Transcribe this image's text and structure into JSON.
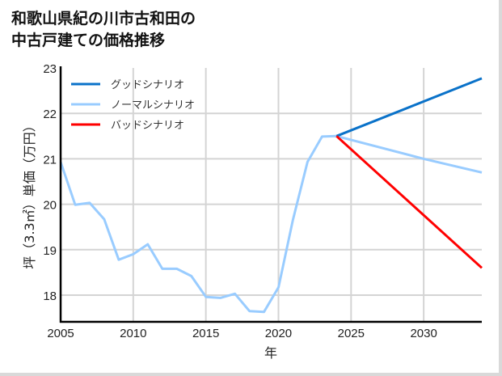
{
  "title_lines": [
    "和歌山県紀の川市古和田の",
    "中古戸建ての価格推移"
  ],
  "chart_data": {
    "type": "line",
    "title": "和歌山県紀の川市古和田の中古戸建ての価格推移",
    "xlabel": "年",
    "ylabel": "坪（3.3㎡）単価（万円）",
    "xlim": [
      2005,
      2034
    ],
    "ylim": [
      17.4,
      23
    ],
    "xticks": [
      2005,
      2010,
      2015,
      2020,
      2025,
      2030
    ],
    "yticks": [
      18,
      19,
      20,
      21,
      22,
      23
    ],
    "grid": true,
    "legend_position": "upper left",
    "series": [
      {
        "name": "グッドシナリオ",
        "color": "#0a72c9",
        "x": [
          2024,
          2034
        ],
        "y": [
          21.5,
          22.77
        ]
      },
      {
        "name": "ノーマルシナリオ",
        "color": "#99ccff",
        "x": [
          2005,
          2006,
          2007,
          2008,
          2009,
          2010,
          2011,
          2012,
          2013,
          2014,
          2015,
          2016,
          2017,
          2018,
          2019,
          2020,
          2021,
          2022,
          2023,
          2024,
          2030,
          2034
        ],
        "y": [
          20.93,
          19.99,
          20.03,
          19.67,
          18.78,
          18.9,
          19.12,
          18.58,
          18.58,
          18.42,
          17.96,
          17.94,
          18.03,
          17.65,
          17.63,
          18.17,
          19.66,
          20.93,
          21.49,
          21.5,
          21.0,
          20.7
        ]
      },
      {
        "name": "バッドシナリオ",
        "color": "#ff0000",
        "x": [
          2024,
          2034
        ],
        "y": [
          21.5,
          18.6
        ]
      }
    ]
  }
}
